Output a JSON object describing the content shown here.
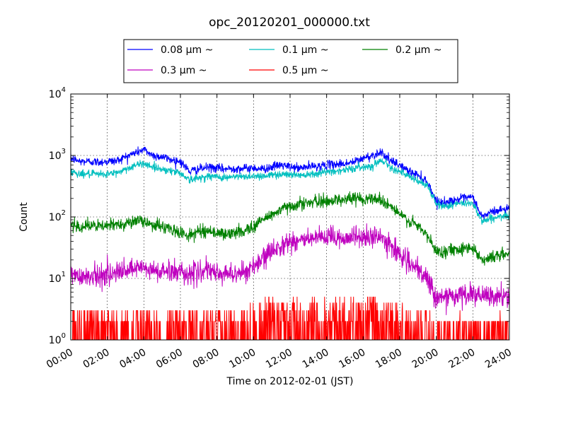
{
  "chart_data": {
    "type": "line",
    "title": "opc_20120201_000000.txt",
    "xlabel": "Time on 2012-02-01 (JST)",
    "ylabel": "Count",
    "xlim": [
      0,
      24
    ],
    "ylim": [
      1,
      10000
    ],
    "yscale": "log",
    "grid": true,
    "legend_position": "above-plot",
    "x_tick_labels": [
      "00:00",
      "02:00",
      "04:00",
      "06:00",
      "08:00",
      "10:00",
      "12:00",
      "14:00",
      "16:00",
      "18:00",
      "20:00",
      "22:00",
      "24:00"
    ],
    "y_tick_labels": [
      {
        "base": "10",
        "exp": "0"
      },
      {
        "base": "10",
        "exp": "1"
      },
      {
        "base": "10",
        "exp": "2"
      },
      {
        "base": "10",
        "exp": "3"
      },
      {
        "base": "10",
        "exp": "4"
      }
    ],
    "hours": [
      0,
      0.5,
      1,
      1.5,
      2,
      2.5,
      3,
      3.5,
      4,
      4.5,
      5,
      5.5,
      6,
      6.5,
      7,
      7.5,
      8,
      8.5,
      9,
      9.5,
      10,
      10.5,
      11,
      11.5,
      12,
      12.5,
      13,
      13.5,
      14,
      14.5,
      15,
      15.5,
      16,
      16.5,
      17,
      17.5,
      18,
      18.5,
      19,
      19.5,
      20,
      20.5,
      21,
      21.5,
      22,
      22.5,
      23,
      23.5,
      24
    ],
    "series": [
      {
        "name": "0.08 μm ~",
        "color": "#0000ff",
        "noise": 0.035,
        "values": [
          900,
          800,
          800,
          780,
          800,
          820,
          950,
          1100,
          1250,
          1000,
          950,
          850,
          800,
          550,
          600,
          640,
          620,
          600,
          620,
          610,
          630,
          600,
          650,
          700,
          650,
          620,
          660,
          670,
          700,
          720,
          740,
          780,
          900,
          1000,
          1150,
          800,
          700,
          550,
          480,
          380,
          180,
          170,
          190,
          200,
          210,
          100,
          120,
          130,
          140
        ]
      },
      {
        "name": "0.1 μm ~",
        "color": "#00bfbf",
        "noise": 0.03,
        "values": [
          550,
          500,
          500,
          490,
          500,
          520,
          600,
          680,
          750,
          650,
          600,
          560,
          520,
          400,
          430,
          460,
          450,
          440,
          450,
          450,
          470,
          460,
          480,
          500,
          490,
          480,
          500,
          520,
          540,
          560,
          580,
          620,
          650,
          680,
          850,
          650,
          550,
          450,
          380,
          330,
          160,
          150,
          160,
          165,
          170,
          85,
          95,
          100,
          105
        ]
      },
      {
        "name": "0.2 μm ~",
        "color": "#008000",
        "noise": 0.05,
        "values": [
          80,
          70,
          72,
          70,
          72,
          75,
          80,
          85,
          85,
          75,
          70,
          62,
          55,
          50,
          58,
          60,
          55,
          52,
          55,
          60,
          70,
          90,
          110,
          130,
          150,
          165,
          170,
          175,
          180,
          190,
          195,
          200,
          200,
          200,
          190,
          150,
          110,
          85,
          70,
          50,
          27,
          28,
          30,
          31,
          32,
          20,
          22,
          24,
          25
        ]
      },
      {
        "name": "0.3 μm ~",
        "color": "#bf00bf",
        "noise": 0.085,
        "values": [
          12,
          11,
          11,
          11,
          12,
          12,
          13,
          14,
          15,
          13,
          13,
          13,
          13,
          12,
          13,
          13,
          12,
          12,
          12,
          13,
          15,
          20,
          28,
          35,
          40,
          42,
          43,
          44,
          45,
          46,
          46,
          47,
          47,
          47,
          45,
          35,
          25,
          18,
          13,
          10,
          5,
          5,
          5,
          5.5,
          5.5,
          5,
          5,
          5,
          5
        ]
      },
      {
        "name": "0.5 μm ~",
        "color": "#ff0000",
        "noise": 0,
        "values": [
          2,
          2,
          2,
          2,
          2,
          2,
          2,
          2,
          2,
          2,
          2,
          2,
          2,
          2,
          2,
          2,
          2,
          2,
          2,
          2,
          2.5,
          2.8,
          3,
          3,
          3,
          3,
          3,
          3,
          3,
          3,
          3,
          3,
          3,
          3,
          2.8,
          2.5,
          2.2,
          2,
          2,
          1.8,
          1.5,
          1.5,
          1.5,
          1.5,
          1.5,
          1.5,
          1.5,
          1.5,
          1.5
        ]
      }
    ]
  }
}
